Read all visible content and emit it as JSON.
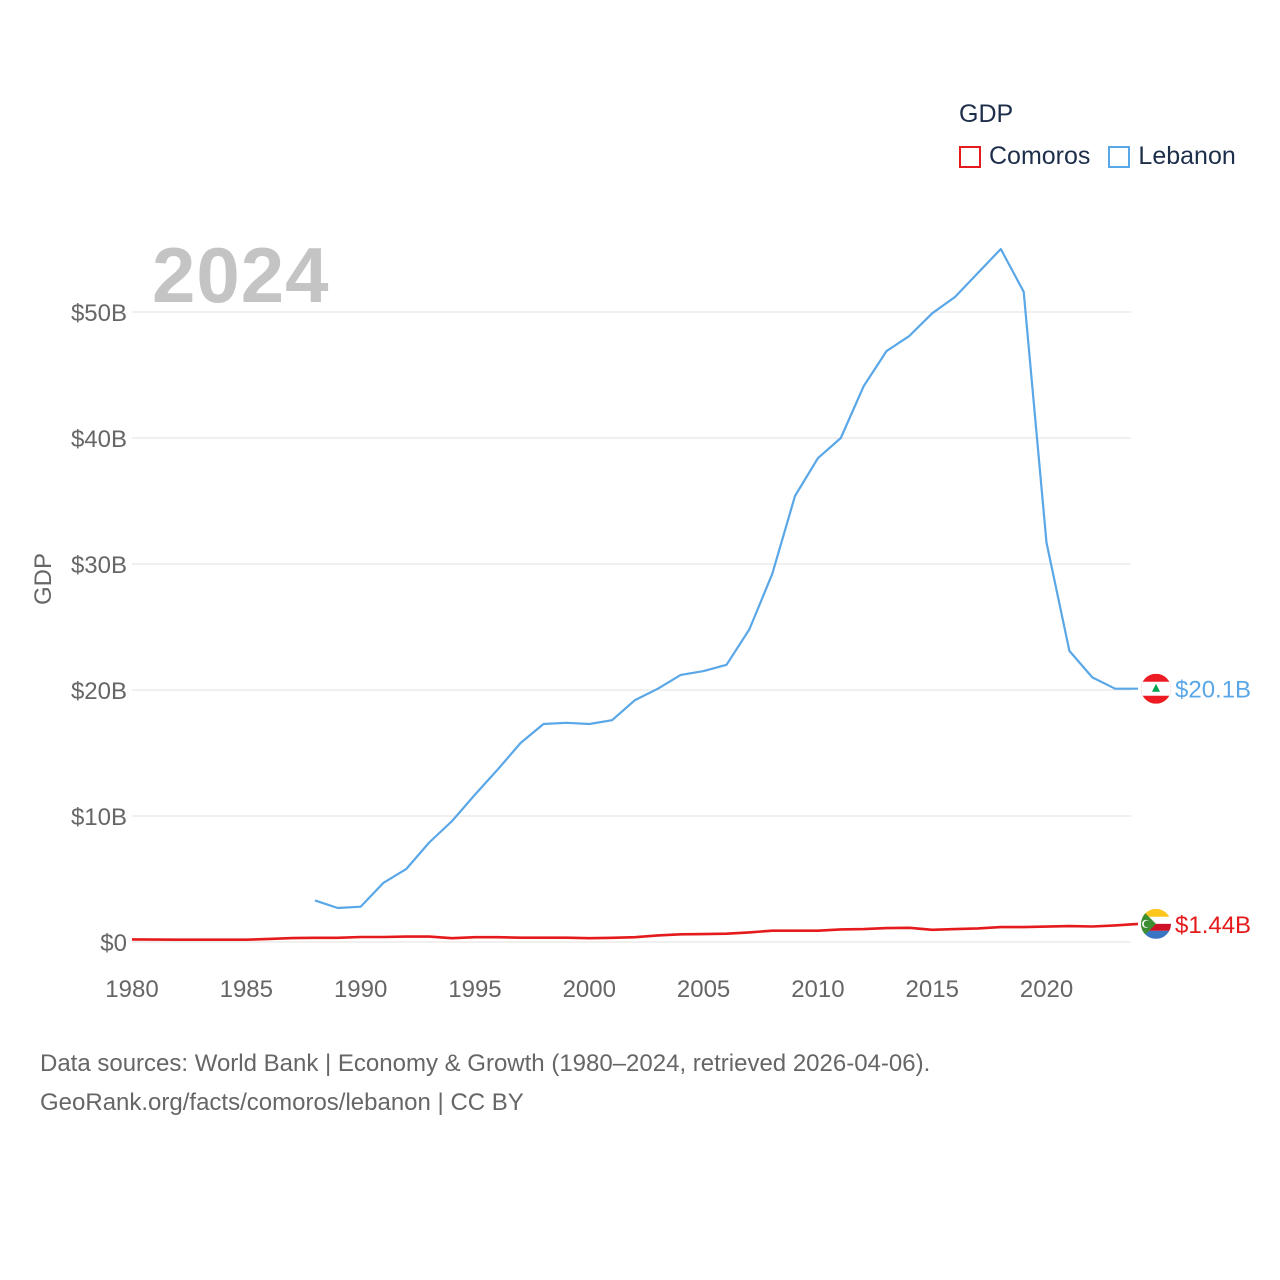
{
  "legend": {
    "title": "GDP",
    "items": [
      {
        "name": "Comoros",
        "color": "#e41a1c"
      },
      {
        "name": "Lebanon",
        "color": "#5aa7e8"
      }
    ]
  },
  "watermark_year": "2024",
  "footer": {
    "line1": "Data sources: World Bank | Economy & Growth (1980–2024, retrieved 2026-04-06).",
    "line2": "GeoRank.org/facts/comoros/lebanon | CC BY"
  },
  "chart_data": {
    "type": "line",
    "title": "",
    "xlabel": "",
    "ylabel": "GDP",
    "xlim": [
      1980,
      2024
    ],
    "ylim": [
      0,
      55
    ],
    "x_ticks": [
      1980,
      1985,
      1990,
      1995,
      2000,
      2005,
      2010,
      2015,
      2020
    ],
    "x_tick_labels": [
      "1980",
      "1985",
      "1990",
      "1995",
      "2000",
      "2005",
      "2010",
      "2015",
      "2020"
    ],
    "y_ticks": [
      0,
      10,
      20,
      30,
      40,
      50
    ],
    "y_tick_labels": [
      "$0",
      "$10B",
      "$20B",
      "$30B",
      "$40B",
      "$50B"
    ],
    "unit": "billion USD",
    "series": [
      {
        "name": "Lebanon",
        "color": "#5aa7e8",
        "end_label": "$20.1B",
        "flag": "lebanon-flag",
        "x": [
          1988,
          1989,
          1990,
          1991,
          1992,
          1993,
          1994,
          1995,
          1996,
          1997,
          1998,
          1999,
          2000,
          2001,
          2002,
          2003,
          2004,
          2005,
          2006,
          2007,
          2008,
          2009,
          2010,
          2011,
          2012,
          2013,
          2014,
          2015,
          2016,
          2017,
          2018,
          2019,
          2020,
          2021,
          2022,
          2023,
          2024
        ],
        "values": [
          3.3,
          2.7,
          2.8,
          4.7,
          5.8,
          7.9,
          9.6,
          11.7,
          13.7,
          15.8,
          17.3,
          17.4,
          17.3,
          17.6,
          19.2,
          20.1,
          21.2,
          21.5,
          22.0,
          24.8,
          29.2,
          35.4,
          38.4,
          40.0,
          44.1,
          46.9,
          48.1,
          49.9,
          51.2,
          53.1,
          55.0,
          51.6,
          31.7,
          23.1,
          21.0,
          20.1,
          20.1
        ]
      },
      {
        "name": "Comoros",
        "color": "#e41a1c",
        "end_label": "$1.44B",
        "flag": "comoros-flag",
        "x": [
          1980,
          1981,
          1982,
          1983,
          1984,
          1985,
          1986,
          1987,
          1988,
          1989,
          1990,
          1991,
          1992,
          1993,
          1994,
          1995,
          1996,
          1997,
          1998,
          1999,
          2000,
          2001,
          2002,
          2003,
          2004,
          2005,
          2006,
          2007,
          2008,
          2009,
          2010,
          2011,
          2012,
          2013,
          2014,
          2015,
          2016,
          2017,
          2018,
          2019,
          2020,
          2021,
          2022,
          2023,
          2024
        ],
        "values": [
          0.21,
          0.19,
          0.18,
          0.18,
          0.18,
          0.18,
          0.25,
          0.31,
          0.33,
          0.33,
          0.4,
          0.4,
          0.43,
          0.43,
          0.3,
          0.38,
          0.38,
          0.34,
          0.34,
          0.34,
          0.3,
          0.33,
          0.38,
          0.52,
          0.61,
          0.63,
          0.66,
          0.76,
          0.9,
          0.9,
          0.9,
          1.0,
          1.02,
          1.1,
          1.13,
          0.97,
          1.02,
          1.08,
          1.18,
          1.18,
          1.22,
          1.26,
          1.23,
          1.32,
          1.44
        ]
      }
    ]
  }
}
